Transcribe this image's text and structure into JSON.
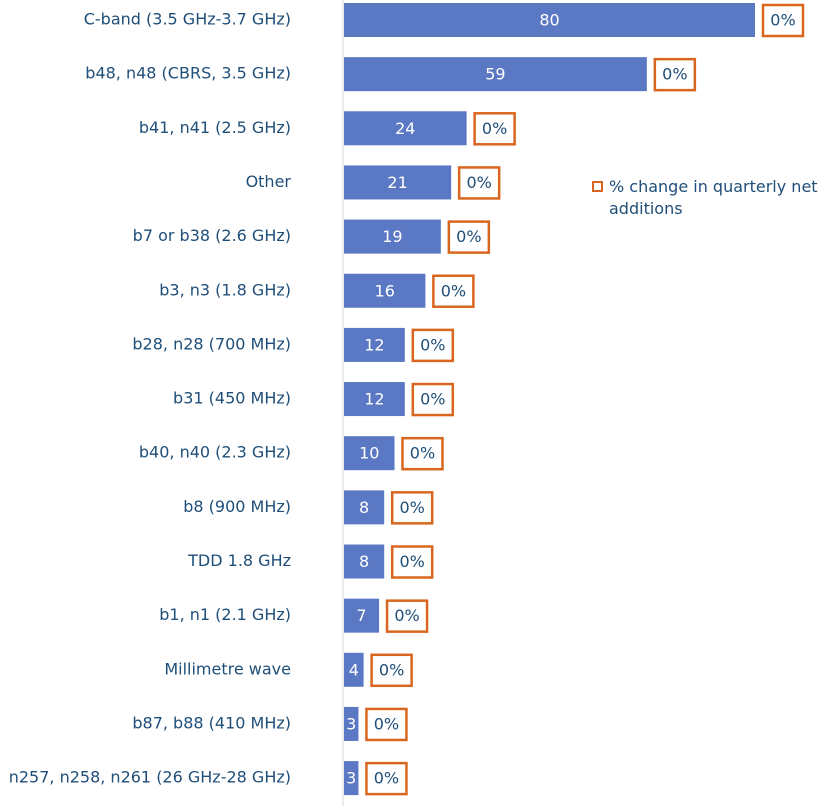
{
  "chart_data": {
    "type": "bar",
    "categories": [
      "C-band (3.5 GHz-3.7 GHz)",
      "b48, n48 (CBRS, 3.5 GHz)",
      "b41, n41 (2.5 GHz)",
      "Other",
      "b7 or b38 (2.6 GHz)",
      "b3, n3 (1.8 GHz)",
      "b28, n28 (700 MHz)",
      "b31 (450 MHz)",
      "b40, n40 (2.3 GHz)",
      "b8 (900 MHz)",
      "TDD 1.8 GHz",
      "b1, n1 (2.1 GHz)",
      "Millimetre wave",
      "b87, b88 (410 MHz)",
      "n257, n258, n261 (26 GHz-28 GHz)"
    ],
    "series": [
      {
        "color": "#5b78c4",
        "values": [
          80,
          59,
          24,
          21,
          19,
          16,
          12,
          12,
          10,
          8,
          8,
          7,
          4,
          3,
          3
        ]
      },
      {
        "name": "% change in quarterly net additions",
        "color": "#d9661f",
        "values": [
          0,
          0,
          0,
          0,
          0,
          0,
          0,
          0,
          0,
          0,
          0,
          0,
          0,
          0,
          0
        ],
        "value_labels": [
          "0%",
          "0%",
          "0%",
          "0%",
          "0%",
          "0%",
          "0%",
          "0%",
          "0%",
          "0%",
          "0%",
          "0%",
          "0%",
          "0%",
          "0%"
        ]
      }
    ]
  }
}
